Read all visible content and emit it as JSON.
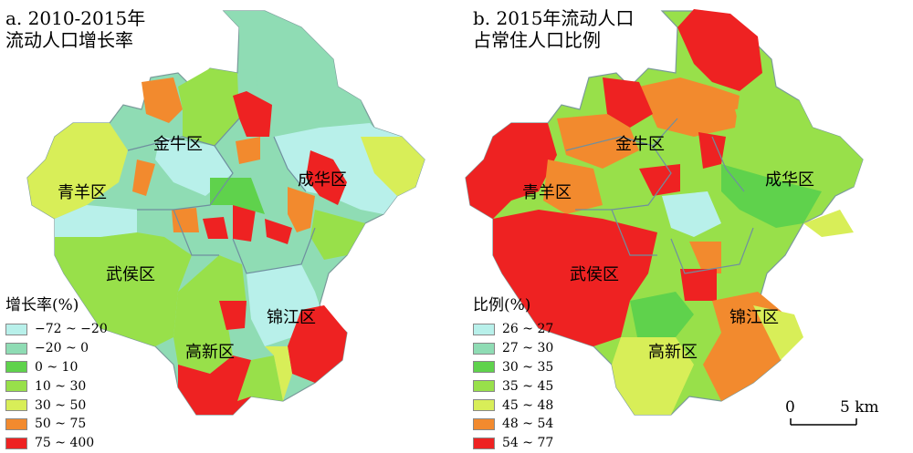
{
  "maps": [
    {
      "title_line1": "a. 2010-2015年",
      "title_line2": "流动人口增长率",
      "districts": [
        "金牛区",
        "青羊区",
        "成华区",
        "武侯区",
        "锦江区",
        "高新区"
      ],
      "legend_title": "增长率(%)",
      "legend": [
        {
          "label": "−72 ~ −20",
          "color": "#b8f0ea"
        },
        {
          "label": "−20 ~ 0",
          "color": "#8fdcb4"
        },
        {
          "label": "0 ~ 10",
          "color": "#5fd24c"
        },
        {
          "label": "10 ~ 30",
          "color": "#98e04a"
        },
        {
          "label": "30 ~ 50",
          "color": "#d8ee58"
        },
        {
          "label": "50 ~ 75",
          "color": "#f28a2e"
        },
        {
          "label": "75 ~ 400",
          "color": "#ee2222"
        }
      ]
    },
    {
      "title_line1": "b. 2015年流动人口",
      "title_line2": "占常住人口比例",
      "districts": [
        "金牛区",
        "青羊区",
        "成华区",
        "武侯区",
        "锦江区",
        "高新区"
      ],
      "legend_title": "比例(%)",
      "legend": [
        {
          "label": "26 ~ 27",
          "color": "#b8f0ea"
        },
        {
          "label": "27 ~ 30",
          "color": "#8fdcb4"
        },
        {
          "label": "30 ~ 35",
          "color": "#5fd24c"
        },
        {
          "label": "35 ~ 45",
          "color": "#98e04a"
        },
        {
          "label": "45 ~ 48",
          "color": "#d8ee58"
        },
        {
          "label": "48 ~ 54",
          "color": "#f28a2e"
        },
        {
          "label": "54 ~ 77",
          "color": "#ee2222"
        }
      ]
    }
  ],
  "scale_bar": {
    "start": "0",
    "end": "5 km"
  }
}
